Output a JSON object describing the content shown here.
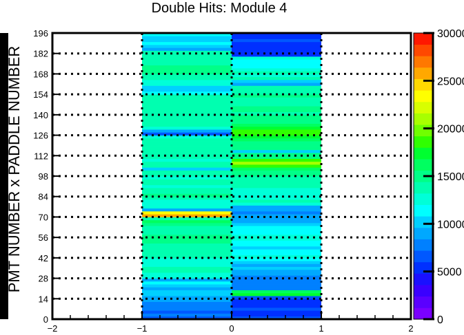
{
  "chart_data": {
    "type": "heatmap",
    "title": "Double Hits: Module 4",
    "xlabel": "",
    "ylabel": "PMT NUMBER x PADDLE NUMBER",
    "xlim": [
      -2,
      2
    ],
    "ylim": [
      0,
      196
    ],
    "x_ticks": [
      "−2",
      "−1",
      "0",
      "1",
      "2"
    ],
    "y_ticks": [
      "0",
      "14",
      "28",
      "42",
      "56",
      "70",
      "84",
      "98",
      "112",
      "126",
      "140",
      "154",
      "168",
      "182",
      "196"
    ],
    "z_ticks": [
      "0",
      "5000",
      "10000",
      "15000",
      "20000",
      "25000",
      "30000"
    ],
    "zlim": [
      0,
      30000
    ],
    "grid": "dotted at x = -1, 0, 1 and every 14 units in y",
    "x_bins": [
      [
        -1,
        0
      ],
      [
        0,
        1
      ]
    ],
    "y_bin_width": 2,
    "columns": [
      {
        "x_range": [
          -1,
          0
        ],
        "values": [
          7000,
          7500,
          6800,
          7200,
          7600,
          8000,
          8500,
          9500,
          10500,
          9800,
          9200,
          10200,
          11000,
          8800,
          12000,
          13000,
          14000,
          13500,
          12500,
          13000,
          12800,
          13200,
          13600,
          14200,
          13800,
          13400,
          14500,
          15000,
          14800,
          14200,
          13500,
          13800,
          15500,
          16000,
          14000,
          26000,
          23000,
          9000,
          13000,
          12000,
          13000,
          13800,
          15000,
          14000,
          13600,
          12800,
          13200,
          13600,
          13000,
          14200,
          13400,
          10500,
          13200,
          13800,
          13000,
          13500,
          13800,
          14000,
          13200,
          13600,
          14000,
          13400,
          12000,
          6500,
          9000,
          13000,
          13500,
          14000,
          13800,
          13500,
          13800,
          14200,
          13600,
          13800,
          14000,
          13500,
          13200,
          10800,
          10500,
          10000,
          12000,
          12500,
          13500,
          14000,
          14500,
          15000,
          14800,
          14200,
          13800,
          14000,
          13200,
          13800,
          9500,
          10500,
          11200,
          9800,
          10200,
          10800
        ]
      },
      {
        "x_range": [
          0,
          1
        ],
        "values": [
          6000,
          5800,
          5500,
          6200,
          5000,
          5400,
          5800,
          6000,
          17000,
          16500,
          7200,
          8000,
          7600,
          8200,
          7800,
          8500,
          9200,
          10000,
          9500,
          10500,
          11000,
          12000,
          11500,
          10800,
          10200,
          11200,
          11600,
          12000,
          12400,
          11800,
          11400,
          11000,
          10600,
          9500,
          9000,
          8500,
          8000,
          8800,
          9200,
          13000,
          13500,
          13000,
          12500,
          12000,
          12800,
          13200,
          13600,
          13800,
          14000,
          14500,
          15000,
          16000,
          18000,
          21000,
          18000,
          15500,
          14800,
          10000,
          14500,
          15000,
          15500,
          16000,
          17000,
          18500,
          18000,
          17000,
          16000,
          15500,
          15000,
          14500,
          14000,
          14500,
          15000,
          13500,
          13800,
          14000,
          14500,
          13800,
          14200,
          14000,
          9500,
          10200,
          13500,
          13000,
          13200,
          12500,
          11800,
          11000,
          11500,
          12000,
          5500,
          5200,
          4800,
          5000,
          5500,
          6000,
          5200,
          5800
        ]
      }
    ],
    "palette": [
      "#7a00ff",
      "#5a00ff",
      "#3a00ff",
      "#1a10ff",
      "#0030ff",
      "#0058ff",
      "#0080ff",
      "#00a8ff",
      "#00d0ff",
      "#00ffff",
      "#00ffd8",
      "#00ffb0",
      "#00ff88",
      "#00ff60",
      "#00ff30",
      "#30ff00",
      "#70ff00",
      "#a8ff00",
      "#d8ff00",
      "#ffff00",
      "#ffd800",
      "#ffa800",
      "#ff7800",
      "#ff4800",
      "#ff1800"
    ]
  }
}
